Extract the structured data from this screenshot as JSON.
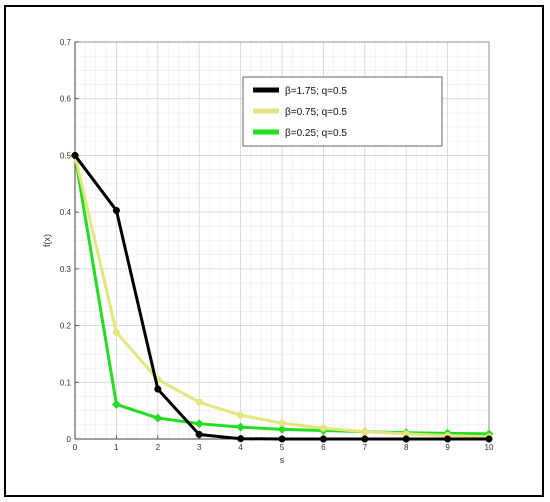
{
  "chart_data": {
    "type": "line",
    "title": "",
    "xlabel": "s",
    "ylabel": "f(x)",
    "xlim": [
      0,
      10
    ],
    "ylim": [
      0,
      0.7
    ],
    "x_ticks": [
      0,
      1,
      2,
      3,
      4,
      5,
      6,
      7,
      8,
      9,
      10
    ],
    "x_tick_labels": [
      "0",
      "1",
      "2",
      "3",
      "4",
      "5",
      "6",
      "7",
      "8",
      "9",
      "10"
    ],
    "y_ticks": [
      0,
      0.1,
      0.2,
      0.3,
      0.4,
      0.5,
      0.6,
      0.7
    ],
    "y_tick_labels": [
      "0",
      "0.1",
      "0.2",
      "0.3",
      "0.4",
      "0.5",
      "0.6",
      "0.7"
    ],
    "grid": "on, with minor grid",
    "legend_position": "top-right",
    "x": [
      0,
      1,
      2,
      3,
      4,
      5,
      6,
      7,
      8,
      9,
      10
    ],
    "series": [
      {
        "name": "β=1.75; q=0.5",
        "color": "#000000",
        "marker": "circle",
        "values": [
          0.5,
          0.403,
          0.088,
          0.008,
          0.0005,
          0.0,
          0.0,
          0.0,
          0.0,
          0.0,
          0.0
        ]
      },
      {
        "name": "β=0.75; q=0.5",
        "color": "#e5e57e",
        "marker": "circle",
        "values": [
          0.5,
          0.188,
          0.105,
          0.065,
          0.042,
          0.028,
          0.019,
          0.013,
          0.009,
          0.006,
          0.004
        ]
      },
      {
        "name": "β=0.25; q=0.5",
        "color": "#22dd22",
        "marker": "diamond",
        "values": [
          0.5,
          0.061,
          0.037,
          0.027,
          0.021,
          0.017,
          0.015,
          0.013,
          0.011,
          0.01,
          0.009
        ]
      }
    ]
  }
}
